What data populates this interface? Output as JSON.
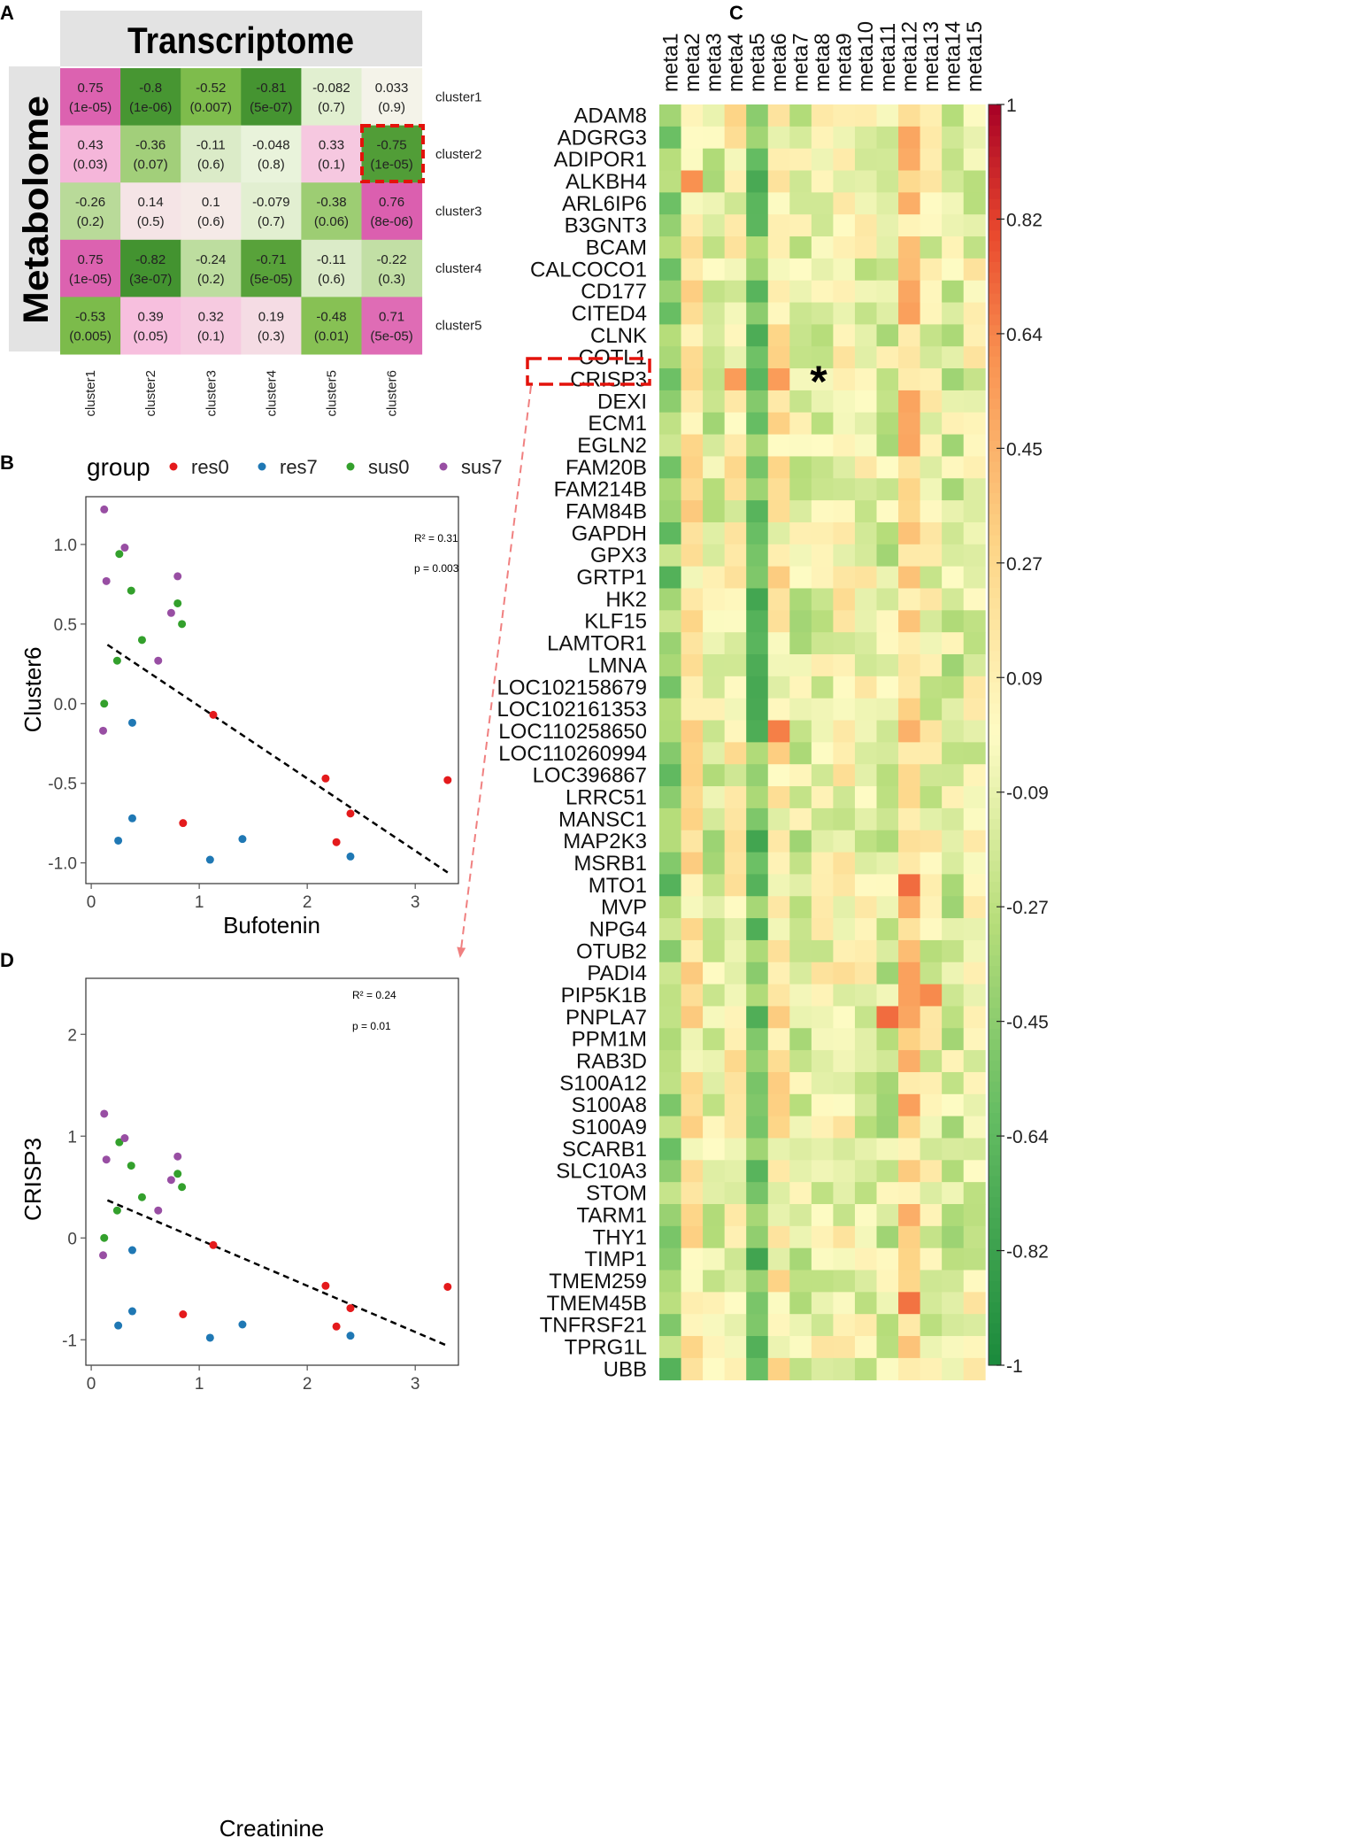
{
  "panel_labels": {
    "a": "A",
    "b": "B",
    "c": "C",
    "d": "D"
  },
  "chart_data": [
    {
      "id": "A",
      "type": "heatmap",
      "title": "Transcriptome",
      "ylabel": "Metabolome",
      "columns": [
        "cluster1",
        "cluster2",
        "cluster3",
        "cluster4",
        "cluster5",
        "cluster6"
      ],
      "rows": [
        "cluster1",
        "cluster2",
        "cluster3",
        "cluster4",
        "cluster5"
      ],
      "values": [
        [
          "0.75",
          "-0.8",
          "-0.52",
          "-0.81",
          "-0.082",
          "0.033"
        ],
        [
          "0.43",
          "-0.36",
          "-0.11",
          "-0.048",
          "0.33",
          "-0.75"
        ],
        [
          "-0.26",
          "0.14",
          "0.1",
          "-0.079",
          "-0.38",
          "0.76"
        ],
        [
          "0.75",
          "-0.82",
          "-0.24",
          "-0.71",
          "-0.11",
          "-0.22"
        ],
        [
          "-0.53",
          "0.39",
          "0.32",
          "0.19",
          "-0.48",
          "0.71"
        ]
      ],
      "pvalues": [
        [
          "(1e-05)",
          "(1e-06)",
          "(0.007)",
          "(5e-07)",
          "(0.7)",
          "(0.9)"
        ],
        [
          "(0.03)",
          "(0.07)",
          "(0.6)",
          "(0.8)",
          "(0.1)",
          "(1e-05)"
        ],
        [
          "(0.2)",
          "(0.5)",
          "(0.6)",
          "(0.7)",
          "(0.06)",
          "(8e-06)"
        ],
        [
          "(1e-05)",
          "(3e-07)",
          "(0.2)",
          "(5e-05)",
          "(0.6)",
          "(0.3)"
        ],
        [
          "(0.005)",
          "(0.05)",
          "(0.1)",
          "(0.3)",
          "(0.01)",
          "(5e-05)"
        ]
      ],
      "highlight": {
        "row": 1,
        "col": 5
      }
    },
    {
      "id": "B",
      "type": "scatter",
      "xlabel": "Bufotenin",
      "ylabel": "Cluster6",
      "xlim": [
        -0.05,
        3.4
      ],
      "ylim": [
        -1.13,
        1.3
      ],
      "xticks": [
        0,
        1,
        2,
        3
      ],
      "yticks": [
        -1.0,
        -0.5,
        0.0,
        0.5,
        1.0
      ],
      "ytick_labels": [
        "-1.0",
        "-0.5",
        "0.0",
        "0.5",
        "1.0"
      ],
      "legend": {
        "title": "group",
        "entries": [
          "res0",
          "res7",
          "sus0",
          "sus7"
        ],
        "colors": [
          "#e41a1c",
          "#1f78b4",
          "#33a02c",
          "#984ea3"
        ]
      },
      "r2_label": "R² = 0.31",
      "p_label": "p = 0.003",
      "fit": {
        "x": [
          0.15,
          3.3
        ],
        "y": [
          0.37,
          -1.06
        ]
      },
      "series": [
        {
          "name": "res0",
          "points": [
            [
              1.13,
              -0.07
            ],
            [
              0.85,
              -0.75
            ],
            [
              2.17,
              -0.47
            ],
            [
              2.4,
              -0.69
            ],
            [
              2.27,
              -0.87
            ],
            [
              3.3,
              -0.48
            ]
          ]
        },
        {
          "name": "res7",
          "points": [
            [
              0.38,
              -0.12
            ],
            [
              0.38,
              -0.72
            ],
            [
              0.25,
              -0.86
            ],
            [
              1.1,
              -0.98
            ],
            [
              1.4,
              -0.85
            ],
            [
              2.4,
              -0.96
            ]
          ]
        },
        {
          "name": "sus0",
          "points": [
            [
              0.26,
              0.94
            ],
            [
              0.37,
              0.71
            ],
            [
              0.47,
              0.4
            ],
            [
              0.24,
              0.27
            ],
            [
              0.12,
              0.0
            ],
            [
              0.8,
              0.63
            ],
            [
              0.84,
              0.5
            ]
          ]
        },
        {
          "name": "sus7",
          "points": [
            [
              0.12,
              1.22
            ],
            [
              0.31,
              0.98
            ],
            [
              0.14,
              0.77
            ],
            [
              0.74,
              0.57
            ],
            [
              0.8,
              0.8
            ],
            [
              0.62,
              0.27
            ],
            [
              0.11,
              -0.17
            ]
          ]
        }
      ]
    },
    {
      "id": "C",
      "type": "heatmap",
      "columns": [
        "meta1",
        "meta2",
        "meta3",
        "meta4",
        "meta5",
        "meta6",
        "meta7",
        "meta8",
        "meta9",
        "meta10",
        "meta11",
        "meta12",
        "meta13",
        "meta14",
        "meta15"
      ],
      "rows": [
        "ADAM8",
        "ADGRG3",
        "ADIPOR1",
        "ALKBH4",
        "ARL6IP6",
        "B3GNT3",
        "BCAM",
        "CALCOCO1",
        "CD177",
        "CITED4",
        "CLNK",
        "COTL1",
        "CRISP3",
        "DEXI",
        "ECM1",
        "EGLN2",
        "FAM20B",
        "FAM214B",
        "FAM84B",
        "GAPDH",
        "GPX3",
        "GRTP1",
        "HK2",
        "KLF15",
        "LAMTOR1",
        "LMNA",
        "LOC102158679",
        "LOC102161353",
        "LOC110258650",
        "LOC110260994",
        "LOC396867",
        "LRRC51",
        "MANSC1",
        "MAP2K3",
        "MSRB1",
        "MTO1",
        "MVP",
        "NPG4",
        "OTUB2",
        "PADI4",
        "PIP5K1B",
        "PNPLA7",
        "PPM1M",
        "RAB3D",
        "S100A12",
        "S100A8",
        "S100A9",
        "SCARB1",
        "SLC10A3",
        "STOM",
        "TARM1",
        "THY1",
        "TIMP1",
        "TMEM259",
        "TMEM45B",
        "TNFRSF21",
        "TPRG1L",
        "UBB"
      ],
      "colorbar_ticks": [
        "1",
        "0.82",
        "0.64",
        "0.45",
        "0.27",
        "0.09",
        "-0.09",
        "-0.27",
        "-0.45",
        "-0.64",
        "-0.82",
        "-1"
      ],
      "highlight_row": "CRISP3",
      "star_label": "*",
      "star_cell": {
        "row": "CRISP3",
        "col": "meta8"
      }
    },
    {
      "id": "D",
      "type": "scatter",
      "xlabel": "Creatinine",
      "ylabel": "CRISP3",
      "xlim": [
        -0.05,
        3.4
      ],
      "ylim": [
        -1.25,
        2.55
      ],
      "xticks": [
        0,
        1,
        2,
        3
      ],
      "yticks": [
        -1,
        0,
        1,
        2
      ],
      "ytick_labels": [
        "-1",
        "0",
        "1",
        "2"
      ],
      "r2_label": "R² = 0.24",
      "p_label": "p = 0.01",
      "fit": {
        "x": [
          0.15,
          3.3
        ],
        "y": [
          0.37,
          -1.06
        ]
      },
      "series": [
        {
          "name": "res0",
          "points": [
            [
              1.13,
              -0.07
            ],
            [
              0.85,
              -0.75
            ],
            [
              2.17,
              -0.47
            ],
            [
              2.4,
              -0.69
            ],
            [
              2.27,
              -0.87
            ],
            [
              3.3,
              -0.48
            ]
          ]
        },
        {
          "name": "res7",
          "points": [
            [
              0.38,
              -0.12
            ],
            [
              0.38,
              -0.72
            ],
            [
              0.25,
              -0.86
            ],
            [
              1.1,
              -0.98
            ],
            [
              1.4,
              -0.85
            ],
            [
              2.4,
              -0.96
            ]
          ]
        },
        {
          "name": "sus0",
          "points": [
            [
              0.26,
              0.94
            ],
            [
              0.37,
              0.71
            ],
            [
              0.47,
              0.4
            ],
            [
              0.24,
              0.27
            ],
            [
              0.12,
              0.0
            ],
            [
              0.8,
              0.63
            ],
            [
              0.84,
              0.5
            ]
          ]
        },
        {
          "name": "sus7",
          "points": [
            [
              0.12,
              1.22
            ],
            [
              0.31,
              0.98
            ],
            [
              0.14,
              0.77
            ],
            [
              0.74,
              0.57
            ],
            [
              0.8,
              0.8
            ],
            [
              0.62,
              0.27
            ],
            [
              0.11,
              -0.17
            ]
          ]
        }
      ]
    }
  ]
}
